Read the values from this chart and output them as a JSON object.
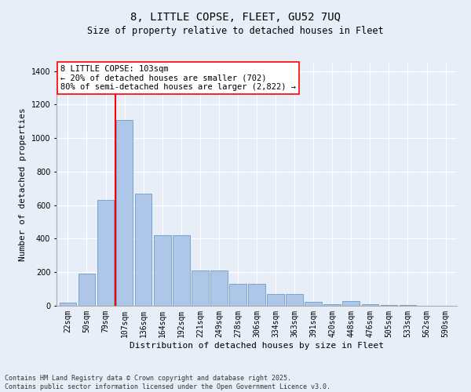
{
  "title_line1": "8, LITTLE COPSE, FLEET, GU52 7UQ",
  "title_line2": "Size of property relative to detached houses in Fleet",
  "xlabel": "Distribution of detached houses by size in Fleet",
  "ylabel": "Number of detached properties",
  "categories": [
    "22sqm",
    "50sqm",
    "79sqm",
    "107sqm",
    "136sqm",
    "164sqm",
    "192sqm",
    "221sqm",
    "249sqm",
    "278sqm",
    "306sqm",
    "334sqm",
    "363sqm",
    "391sqm",
    "420sqm",
    "448sqm",
    "476sqm",
    "505sqm",
    "533sqm",
    "562sqm",
    "590sqm"
  ],
  "values": [
    20,
    190,
    630,
    1110,
    670,
    420,
    420,
    210,
    210,
    130,
    130,
    70,
    70,
    25,
    10,
    30,
    10,
    5,
    3,
    2,
    1
  ],
  "bar_color": "#aec6e8",
  "bar_edge_color": "#5a8fc2",
  "vline_color": "red",
  "vline_x": 2.5,
  "annotation_box_text": "8 LITTLE COPSE: 103sqm\n← 20% of detached houses are smaller (702)\n80% of semi-detached houses are larger (2,822) →",
  "ylim": [
    0,
    1450
  ],
  "bg_color": "#e8eef8",
  "plot_bg_color": "#e8eef8",
  "footer_line1": "Contains HM Land Registry data © Crown copyright and database right 2025.",
  "footer_line2": "Contains public sector information licensed under the Open Government Licence v3.0.",
  "grid_color": "white",
  "title_fontsize": 10,
  "subtitle_fontsize": 8.5,
  "axis_label_fontsize": 8,
  "tick_fontsize": 7,
  "annotation_fontsize": 7.5
}
